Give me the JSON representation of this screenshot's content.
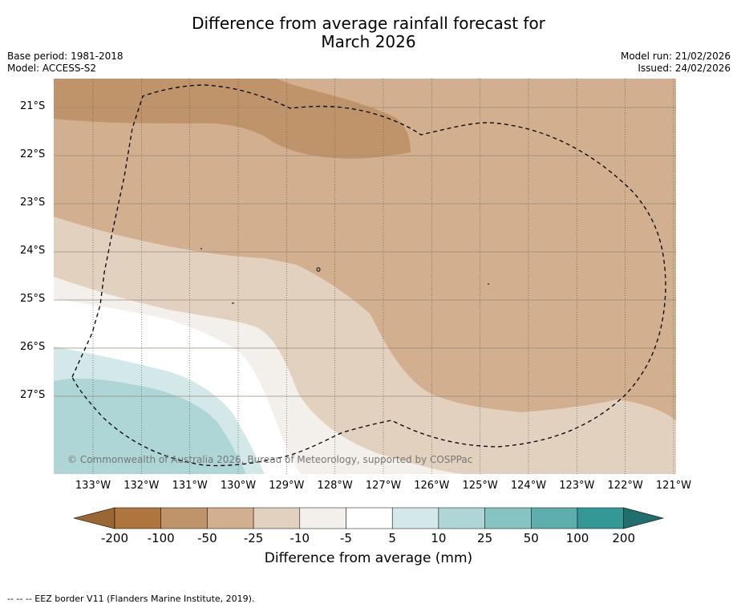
{
  "title_line1": "Difference from average rainfall forecast for",
  "title_line2": "March 2026",
  "base_period": "Base period: 1981-2018",
  "model": "Model: ACCESS-S2",
  "model_run": "Model run: 21/02/2026",
  "issued": "Issued: 24/02/2026",
  "credit": "© Commonwealth of Australia 2026, Bureau of Meteorology, supported by COSPPac",
  "footnote": "--  --  -- EEZ border V11 (Flanders Marine Institute, 2019).",
  "lat_labels": [
    "21°S",
    "22°S",
    "23°S",
    "24°S",
    "25°S",
    "26°S",
    "27°S"
  ],
  "lon_labels": [
    "133°W",
    "132°W",
    "131°W",
    "130°W",
    "129°W",
    "128°W",
    "127°W",
    "126°W",
    "125°W",
    "124°W",
    "123°W",
    "122°W",
    "121°W"
  ],
  "legend": {
    "title": "Difference from average (mm)",
    "ticks": [
      "-200",
      "-100",
      "-50",
      "-25",
      "-10",
      "-5",
      "5",
      "10",
      "25",
      "50",
      "100",
      "200"
    ],
    "colors": [
      "#9a6733",
      "#ae763e",
      "#c0946a",
      "#d2af8f",
      "#e3d1c0",
      "#f3efea",
      "#ffffff",
      "#d3e8e8",
      "#aed6d6",
      "#86c4c3",
      "#5eaeae",
      "#349897",
      "#1f6f6e"
    ]
  },
  "fill_colors": {
    "minus100": "#c0946a",
    "minus50": "#d2af8f",
    "minus25": "#e3d1c0",
    "minus10": "#f3efea",
    "neutral": "#ffffff",
    "plus5": "#d3e8e8",
    "plus10": "#aed6d6"
  }
}
